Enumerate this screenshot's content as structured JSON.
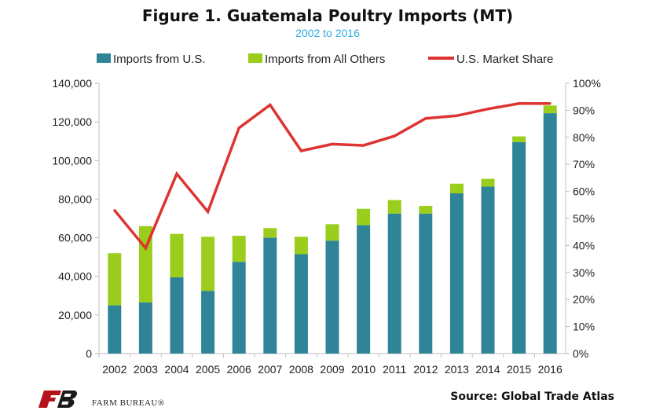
{
  "header": {
    "title": "Figure 1. Guatemala Poultry Imports (MT)",
    "subtitle": "2002 to 2016"
  },
  "footer": {
    "source": "Source: Global Trade Atlas",
    "brand_name": "FARM BUREAU®"
  },
  "colors": {
    "us_imports": "#2f8497",
    "other_imports": "#9acd1c",
    "market_share": "#dc3431",
    "subtitle": "#2eaadc",
    "axis": "#bfbfbf"
  },
  "chart_data": {
    "type": "bar",
    "stacked": true,
    "title": "Figure 1. Guatemala Poultry Imports (MT)",
    "subtitle": "2002 to 2016",
    "categories": [
      "2002",
      "2003",
      "2004",
      "2005",
      "2006",
      "2007",
      "2008",
      "2009",
      "2010",
      "2011",
      "2012",
      "2013",
      "2014",
      "2015",
      "2016"
    ],
    "series": [
      {
        "name": "Imports from U.S.",
        "kind": "bar",
        "axis": "left",
        "values": [
          25000,
          26500,
          39500,
          32500,
          47500,
          60000,
          51500,
          58500,
          66500,
          72500,
          72500,
          83000,
          86500,
          109500,
          124500
        ]
      },
      {
        "name": "Imports from All Others",
        "kind": "bar",
        "axis": "left",
        "values": [
          27000,
          39500,
          22500,
          28000,
          13500,
          5000,
          9000,
          8500,
          8500,
          7000,
          4000,
          5000,
          4000,
          3000,
          4000
        ]
      },
      {
        "name": "U.S. Market Share",
        "kind": "line",
        "axis": "right",
        "values": [
          0.53,
          0.39,
          0.665,
          0.525,
          0.835,
          0.92,
          0.75,
          0.775,
          0.77,
          0.805,
          0.87,
          0.88,
          0.905,
          0.925,
          0.925
        ]
      }
    ],
    "ylim": [
      0,
      140000
    ],
    "y_ticks": [
      "0",
      "20,000",
      "40,000",
      "60,000",
      "80,000",
      "100,000",
      "120,000",
      "140,000"
    ],
    "y2lim": [
      0,
      1
    ],
    "y2_ticks": [
      "0%",
      "10%",
      "20%",
      "30%",
      "40%",
      "50%",
      "60%",
      "70%",
      "80%",
      "90%",
      "100%"
    ],
    "legend_position": "top",
    "grid": false
  }
}
